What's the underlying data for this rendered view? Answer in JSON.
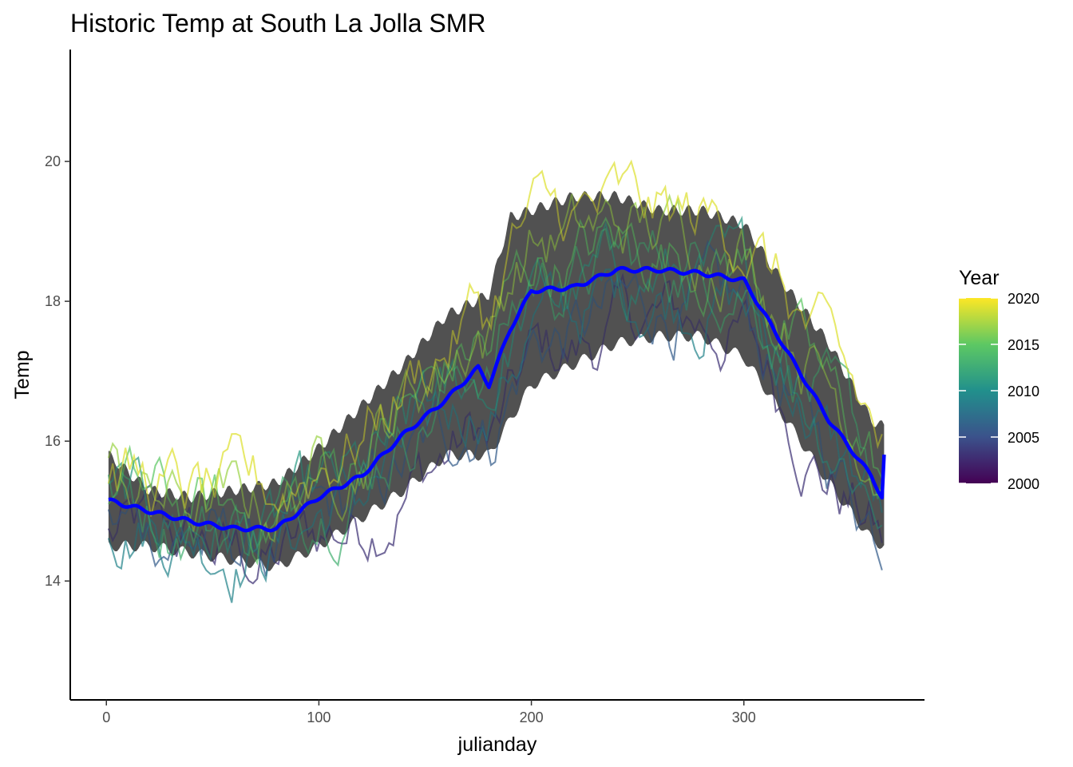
{
  "chart_data": {
    "type": "line",
    "title": "Historic Temp at South La Jolla SMR",
    "xlabel": "julianday",
    "ylabel": "Temp",
    "xlim": [
      -17,
      385
    ],
    "ylim": [
      12.3,
      21.6
    ],
    "x_ticks": [
      0,
      100,
      200,
      300
    ],
    "y_ticks": [
      14,
      16,
      18,
      20
    ],
    "grid": false,
    "legend": {
      "title": "Year",
      "position": "right",
      "type": "colorbar",
      "range": [
        2000,
        2020
      ],
      "ticks": [
        2000,
        2005,
        2010,
        2015,
        2020
      ],
      "colors": [
        "#440154",
        "#3b528b",
        "#21908c",
        "#5dc863",
        "#fde725"
      ]
    },
    "series_years": [
      2003,
      2006,
      2009,
      2011,
      2013,
      2015,
      2017,
      2019
    ],
    "ribbon": {
      "x": [
        1,
        20,
        40,
        60,
        80,
        100,
        120,
        140,
        160,
        180,
        190,
        200,
        220,
        240,
        260,
        280,
        300,
        320,
        340,
        360,
        366
      ],
      "lower": [
        14.5,
        14.5,
        14.4,
        14.3,
        14.2,
        14.5,
        14.9,
        15.3,
        15.8,
        15.8,
        16.3,
        16.8,
        17.1,
        17.4,
        17.5,
        17.5,
        17.2,
        16.3,
        15.4,
        14.6,
        14.5
      ],
      "upper": [
        15.8,
        15.3,
        15.2,
        15.3,
        15.4,
        15.9,
        16.5,
        17.1,
        17.8,
        18.1,
        19.2,
        19.3,
        19.5,
        19.5,
        19.3,
        19.3,
        19.1,
        18.2,
        17.4,
        16.3,
        16.2
      ]
    },
    "mean_line": {
      "color": "#0000ff",
      "x": [
        1,
        20,
        40,
        60,
        80,
        100,
        120,
        140,
        160,
        175,
        180,
        190,
        200,
        220,
        240,
        260,
        280,
        300,
        320,
        340,
        360,
        365,
        366
      ],
      "y": [
        15.15,
        15.0,
        14.85,
        14.75,
        14.75,
        15.2,
        15.5,
        16.1,
        16.6,
        17.05,
        16.8,
        17.6,
        18.15,
        18.2,
        18.45,
        18.45,
        18.4,
        18.3,
        17.3,
        16.3,
        15.5,
        15.2,
        15.8
      ]
    }
  }
}
